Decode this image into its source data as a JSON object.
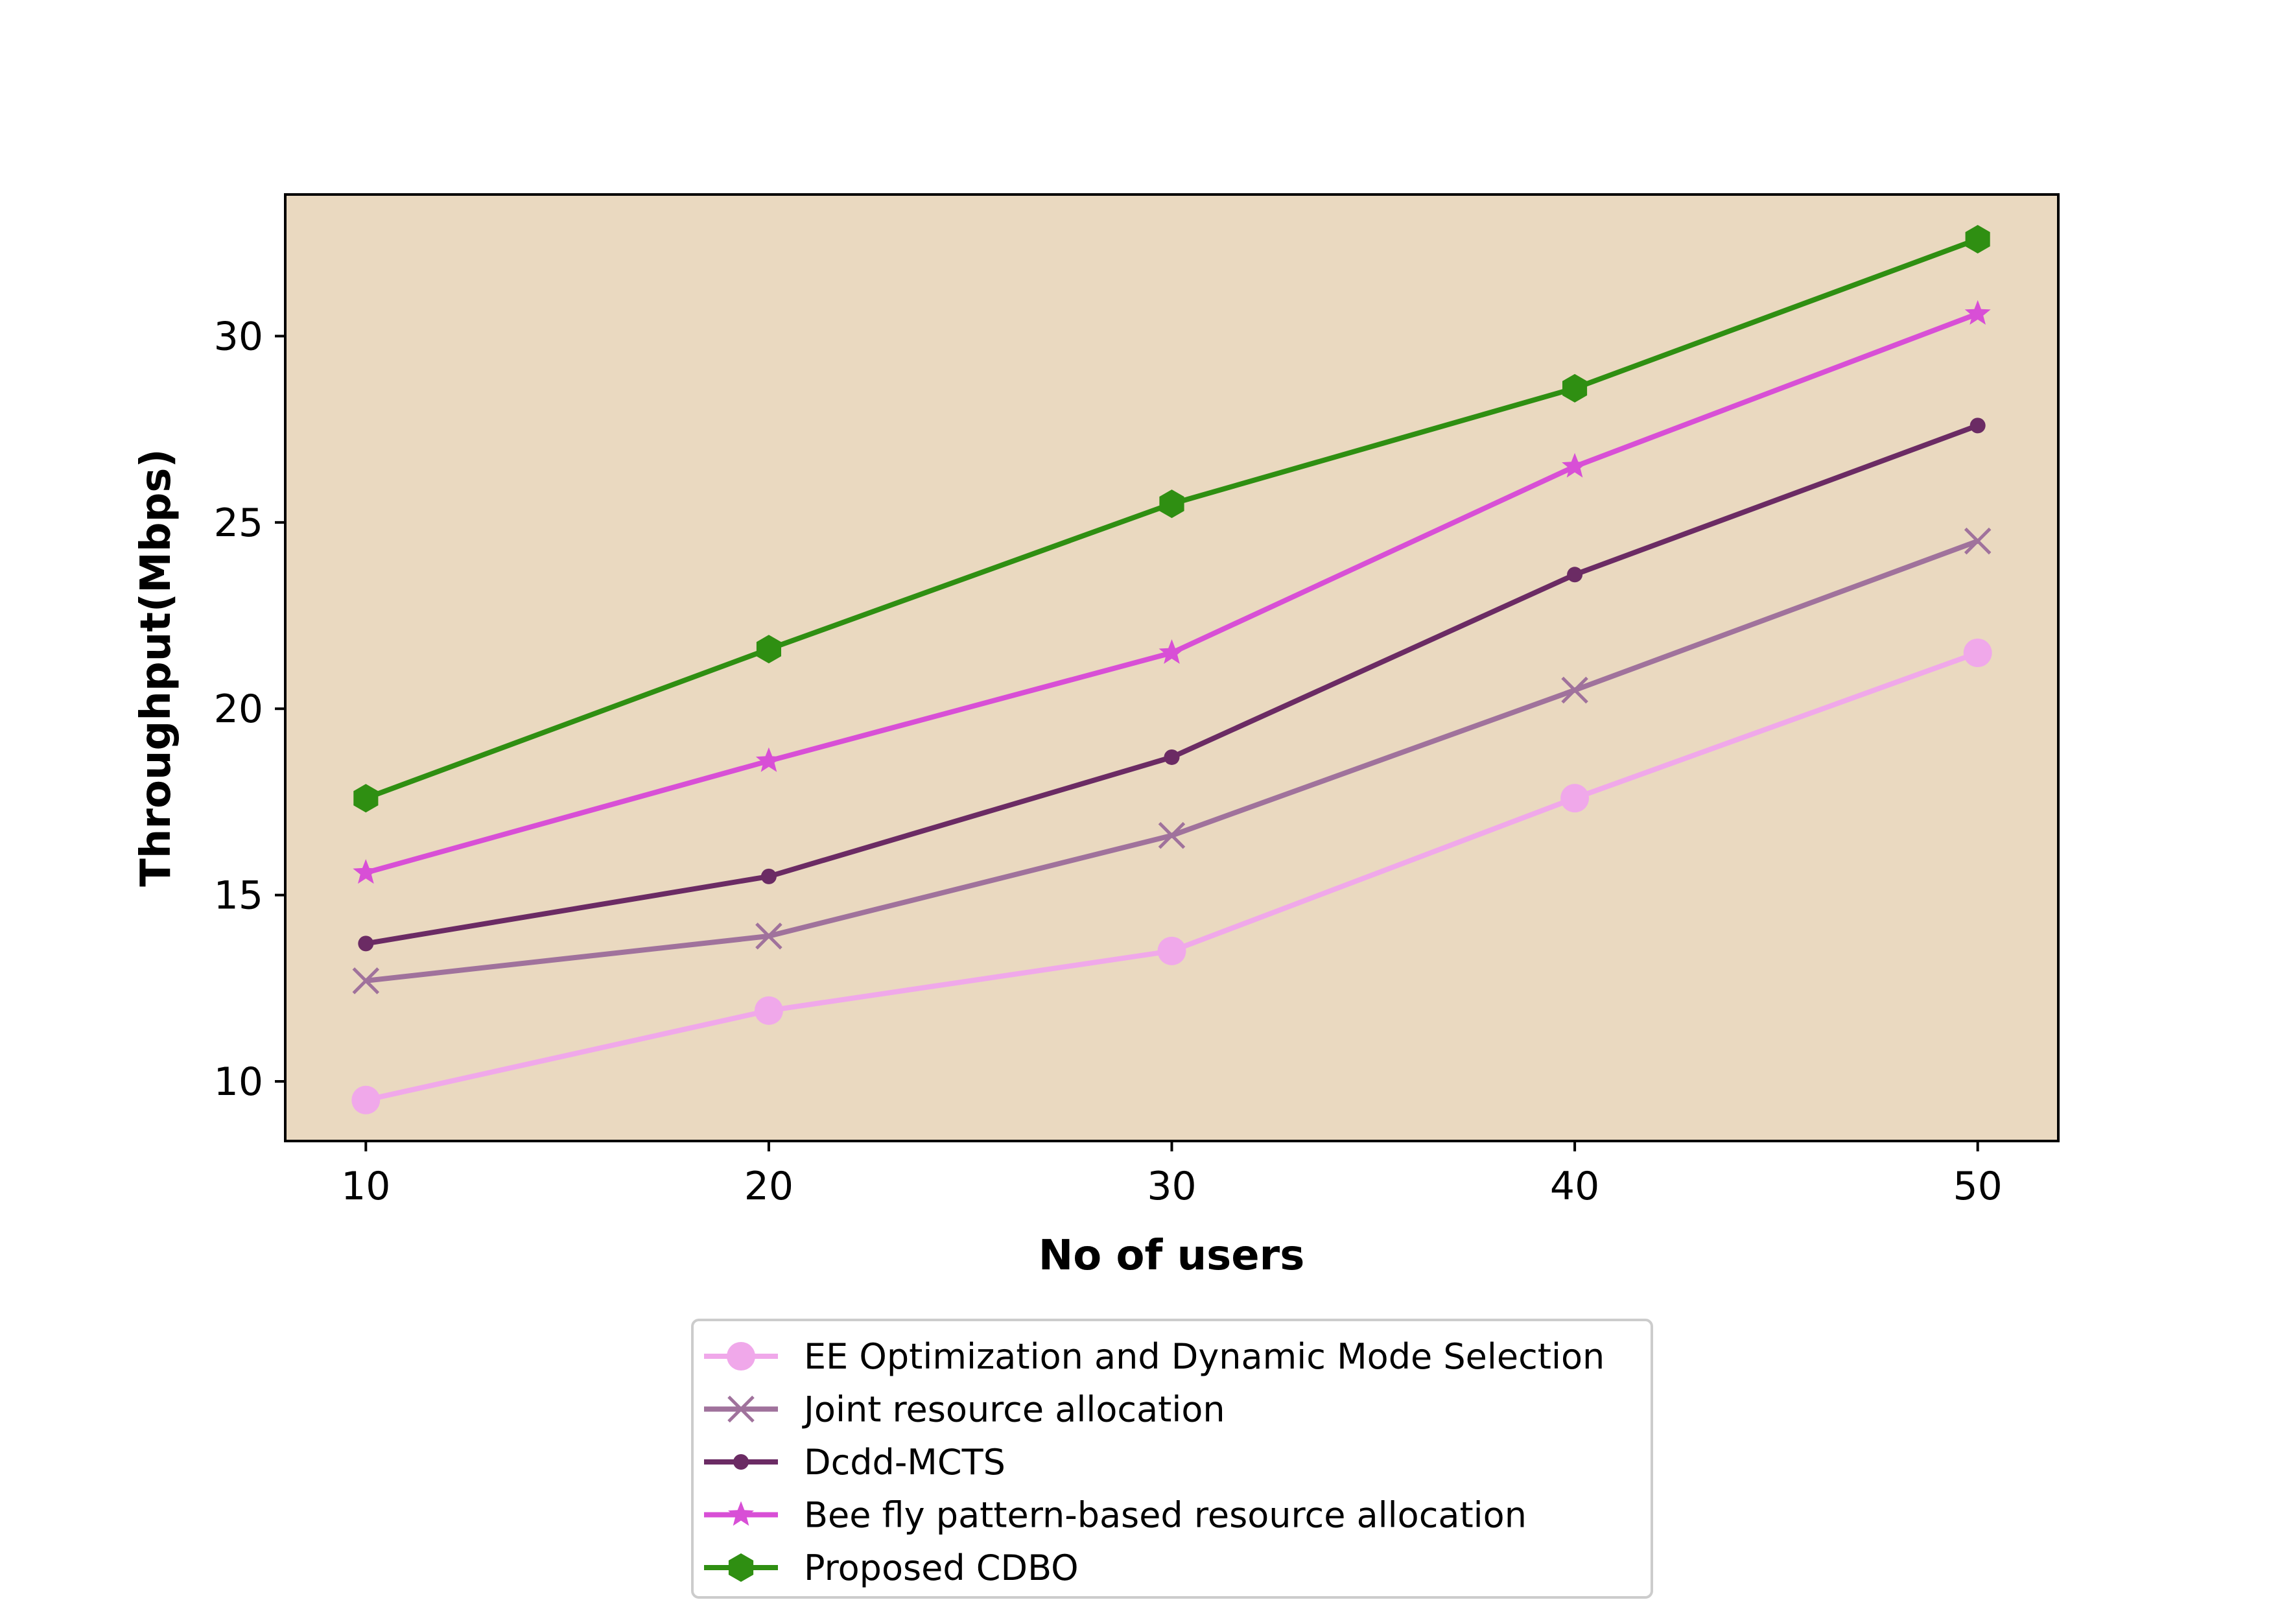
{
  "chart_data": {
    "type": "line",
    "xlabel": "No of users",
    "ylabel": "Throughput(Mbps)",
    "x": [
      10,
      20,
      30,
      40,
      50
    ],
    "xlim": [
      8,
      52
    ],
    "ylim": [
      8.4,
      33.8
    ],
    "xticks": [
      10,
      20,
      30,
      40,
      50
    ],
    "yticks": [
      10,
      15,
      20,
      25,
      30
    ],
    "grid": false,
    "plot_background": "#ead9c0",
    "legend_position": "below plot, centered",
    "series": [
      {
        "name": "EE Optimization and Dynamic Mode Selection",
        "values": [
          9.5,
          11.9,
          13.5,
          17.6,
          21.5
        ],
        "color": "#f0a8ea",
        "marker": "circle"
      },
      {
        "name": "Joint resource allocation",
        "values": [
          12.7,
          13.9,
          16.6,
          20.5,
          24.5
        ],
        "color": "#a0729c",
        "marker": "x"
      },
      {
        "name": "Dcdd-MCTS",
        "values": [
          13.7,
          15.5,
          18.7,
          23.6,
          27.6
        ],
        "color": "#6b2b64",
        "marker": "dot"
      },
      {
        "name": "Bee fly pattern-based resource allocation",
        "values": [
          15.6,
          18.6,
          21.5,
          26.5,
          30.6
        ],
        "color": "#d84fd6",
        "marker": "star"
      },
      {
        "name": "Proposed CDBO",
        "values": [
          17.6,
          21.6,
          25.5,
          28.6,
          32.6
        ],
        "color": "#2f8f12",
        "marker": "hexagon"
      }
    ]
  }
}
